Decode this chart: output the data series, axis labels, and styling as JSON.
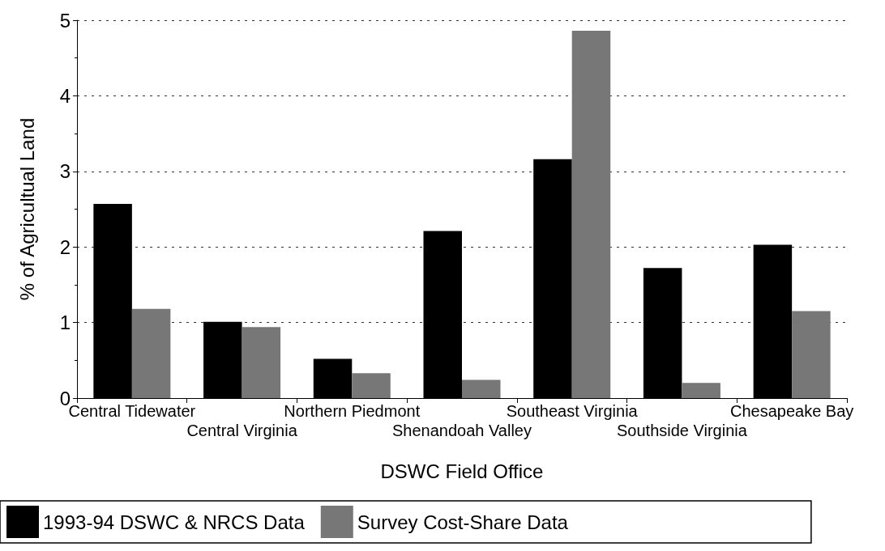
{
  "chart_data": {
    "type": "bar",
    "xlabel": "DSWC Field Office",
    "ylabel": "% of Agricultual Land",
    "categories": [
      "Central Tidewater",
      "Central Virginia",
      "Northern Piedmont",
      "Shenandoah Valley",
      "Southeast Virginia",
      "Southside Virginia",
      "Chesapeake Bay"
    ],
    "series": [
      {
        "name": "1993-94 DSWC & NRCS Data",
        "color": "#000000",
        "values": [
          2.57,
          1.01,
          0.52,
          2.21,
          3.16,
          1.72,
          2.03
        ]
      },
      {
        "name": "Survey Cost-Share Data",
        "color": "#777777",
        "values": [
          1.18,
          0.94,
          0.33,
          0.24,
          4.86,
          0.2,
          1.15
        ]
      }
    ],
    "ylim": [
      0,
      5
    ],
    "yticks": [
      0,
      1,
      2,
      3,
      4,
      5
    ],
    "grid": "y",
    "legend": "bottom"
  }
}
